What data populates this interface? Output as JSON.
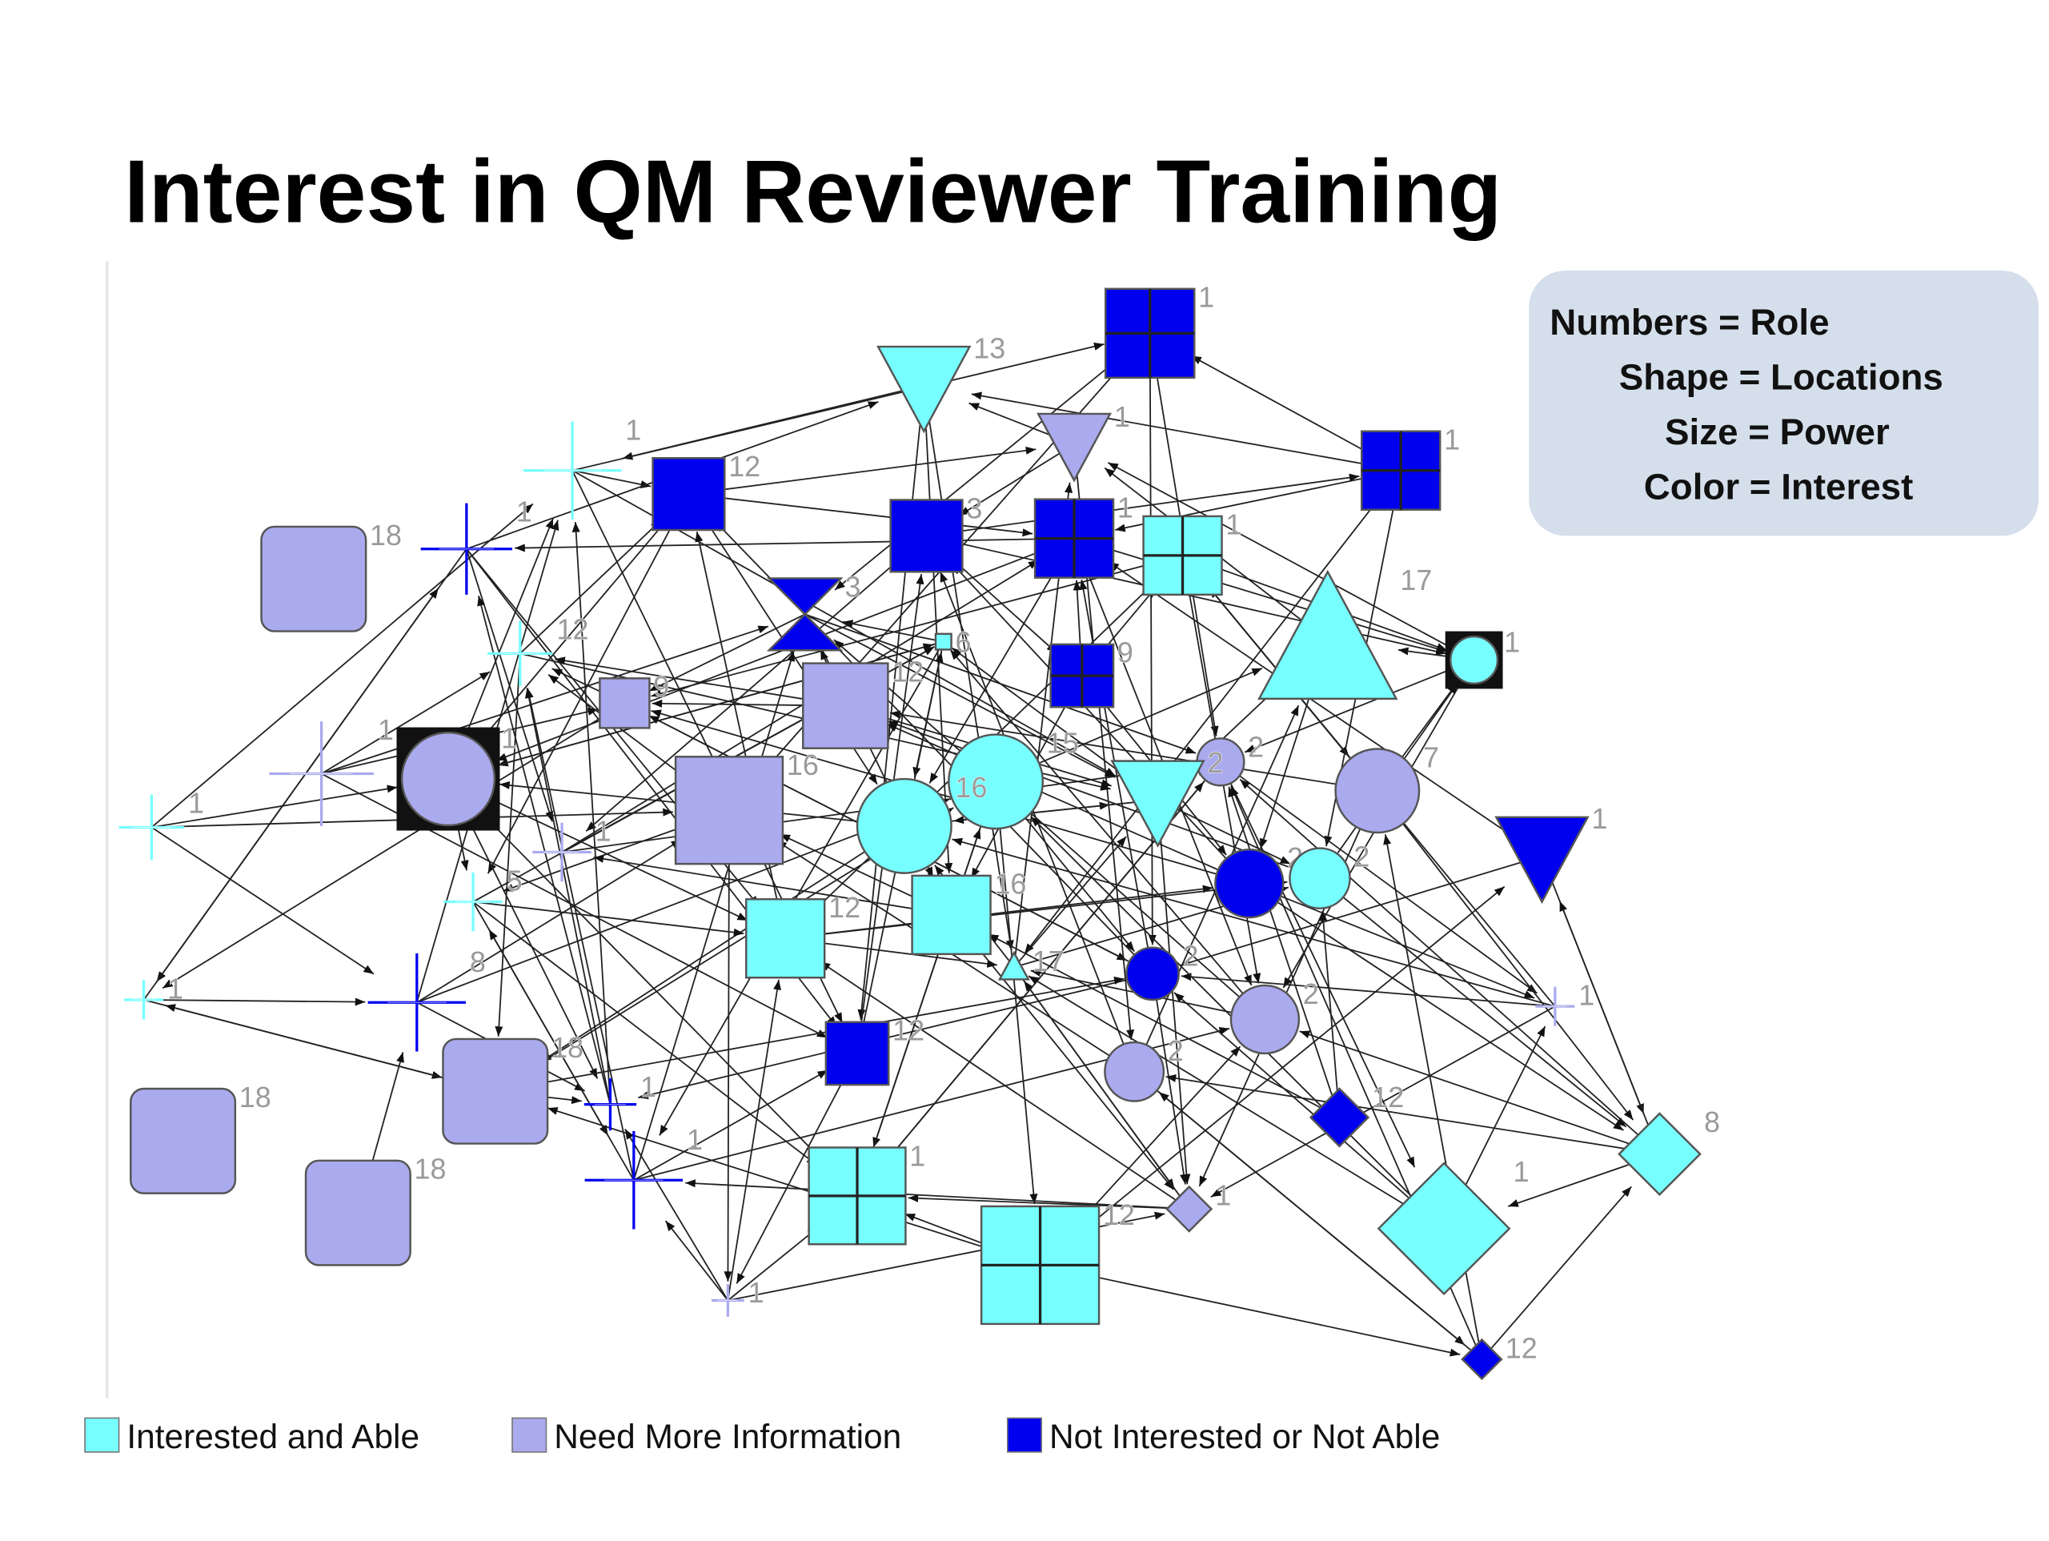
{
  "title": "Interest in QM Reviewer Training",
  "info_box": {
    "lines": [
      "Numbers = Role",
      "Shape = Locations",
      "Size = Power",
      "Color = Interest"
    ]
  },
  "nodes": [
    {
      "label": "1"
    },
    {
      "label": "13"
    },
    {
      "label": "1"
    },
    {
      "label": "1"
    },
    {
      "label": "12"
    },
    {
      "label": "1"
    },
    {
      "label": "18"
    },
    {
      "label": "1"
    },
    {
      "label": "3"
    },
    {
      "label": "1"
    },
    {
      "label": "1"
    },
    {
      "label": "3"
    },
    {
      "label": "17"
    },
    {
      "label": "1"
    },
    {
      "label": "12"
    },
    {
      "label": "6"
    },
    {
      "label": "9"
    },
    {
      "label": "9"
    },
    {
      "label": "12"
    },
    {
      "label": "1"
    },
    {
      "label": "1"
    },
    {
      "label": "1"
    },
    {
      "label": "16"
    },
    {
      "label": "15"
    },
    {
      "label": "16"
    },
    {
      "label": "2"
    },
    {
      "label": "2"
    },
    {
      "label": "7"
    },
    {
      "label": "1"
    },
    {
      "label": "1"
    },
    {
      "label": "5"
    },
    {
      "label": "2"
    },
    {
      "label": "2"
    },
    {
      "label": "16"
    },
    {
      "label": "12"
    },
    {
      "label": "17"
    },
    {
      "label": "2"
    },
    {
      "label": "1"
    },
    {
      "label": "8"
    },
    {
      "label": "2"
    },
    {
      "label": "1"
    },
    {
      "label": "12"
    },
    {
      "label": "18"
    },
    {
      "label": "1"
    },
    {
      "label": "2"
    },
    {
      "label": "18"
    },
    {
      "label": "12"
    },
    {
      "label": "8"
    },
    {
      "label": "1"
    },
    {
      "label": "1"
    },
    {
      "label": "18"
    },
    {
      "label": "1"
    },
    {
      "label": "1"
    },
    {
      "label": "12"
    },
    {
      "label": "1"
    },
    {
      "label": "12"
    }
  ],
  "legend": [
    {
      "label": "Interested and Able",
      "color": "#77ffff"
    },
    {
      "label": "Need More Information",
      "color": "#aaaaee"
    },
    {
      "label": "Not Interested or Not Able",
      "color": "#0000ee"
    }
  ]
}
